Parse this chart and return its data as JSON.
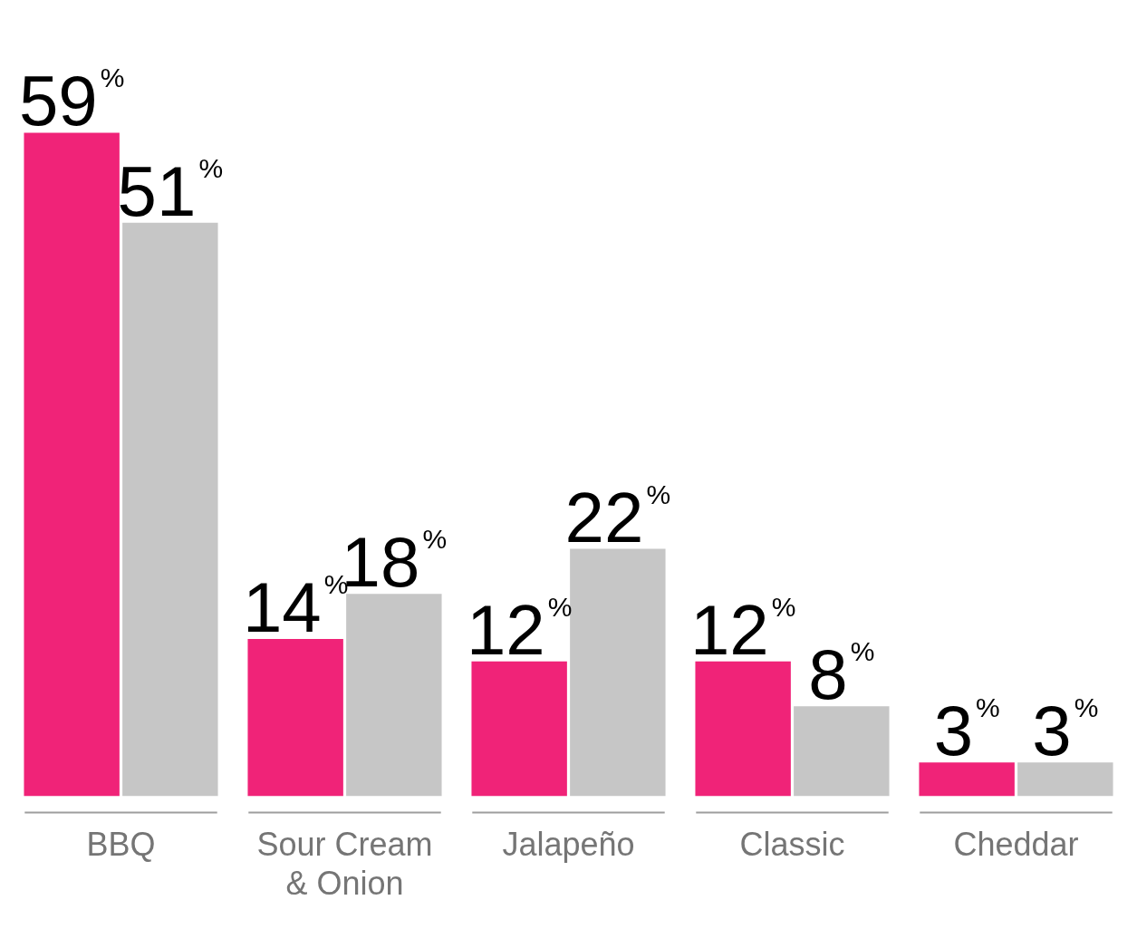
{
  "chart_data": {
    "type": "bar",
    "categories": [
      "BBQ",
      "Sour Cream & Onion",
      "Jalapeño",
      "Classic",
      "Cheddar"
    ],
    "series": [
      {
        "color": "#f02378",
        "values": [
          59,
          14,
          12,
          12,
          3
        ],
        "value_labels": [
          "59%",
          "14%",
          "12%",
          "12%",
          "3%"
        ]
      },
      {
        "color": "#c6c6c6",
        "values": [
          51,
          18,
          22,
          8,
          3
        ],
        "value_labels": [
          "51%",
          "18%",
          "22%",
          "8%",
          "3%"
        ]
      }
    ],
    "grid": false,
    "legend": false
  }
}
